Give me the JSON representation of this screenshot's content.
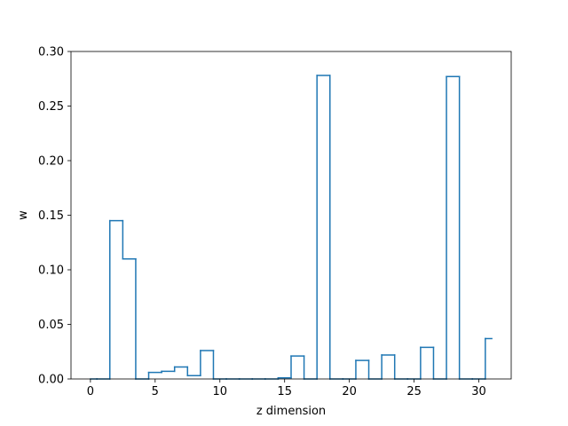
{
  "chart_data": {
    "type": "line",
    "style": "step",
    "xlabel": "z dimension",
    "ylabel": "w",
    "xlim": [
      -1.5,
      32.5
    ],
    "ylim": [
      0.0,
      0.3
    ],
    "x_ticks": [
      0,
      5,
      10,
      15,
      20,
      25,
      30
    ],
    "x_tick_labels": [
      "0",
      "5",
      "10",
      "15",
      "20",
      "25",
      "30"
    ],
    "y_ticks": [
      0.0,
      0.05,
      0.1,
      0.15,
      0.2,
      0.25,
      0.3
    ],
    "y_tick_labels": [
      "0.00",
      "0.05",
      "0.10",
      "0.15",
      "0.20",
      "0.25",
      "0.30"
    ],
    "grid": false,
    "series": [
      {
        "color": "#1f77b4",
        "x": [
          0,
          1,
          2,
          3,
          4,
          5,
          6,
          7,
          8,
          9,
          10,
          11,
          12,
          13,
          14,
          15,
          16,
          17,
          18,
          19,
          20,
          21,
          22,
          23,
          24,
          25,
          26,
          27,
          28,
          29,
          30,
          31
        ],
        "values": [
          0.0,
          0.0,
          0.145,
          0.11,
          0.0,
          0.006,
          0.007,
          0.011,
          0.003,
          0.026,
          0.0,
          0.0,
          0.0,
          0.0,
          0.0,
          0.001,
          0.021,
          0.0,
          0.278,
          0.0,
          0.0,
          0.017,
          0.0,
          0.022,
          0.0,
          0.0,
          0.029,
          0.0,
          0.277,
          0.0,
          0.0,
          0.037
        ]
      }
    ]
  }
}
